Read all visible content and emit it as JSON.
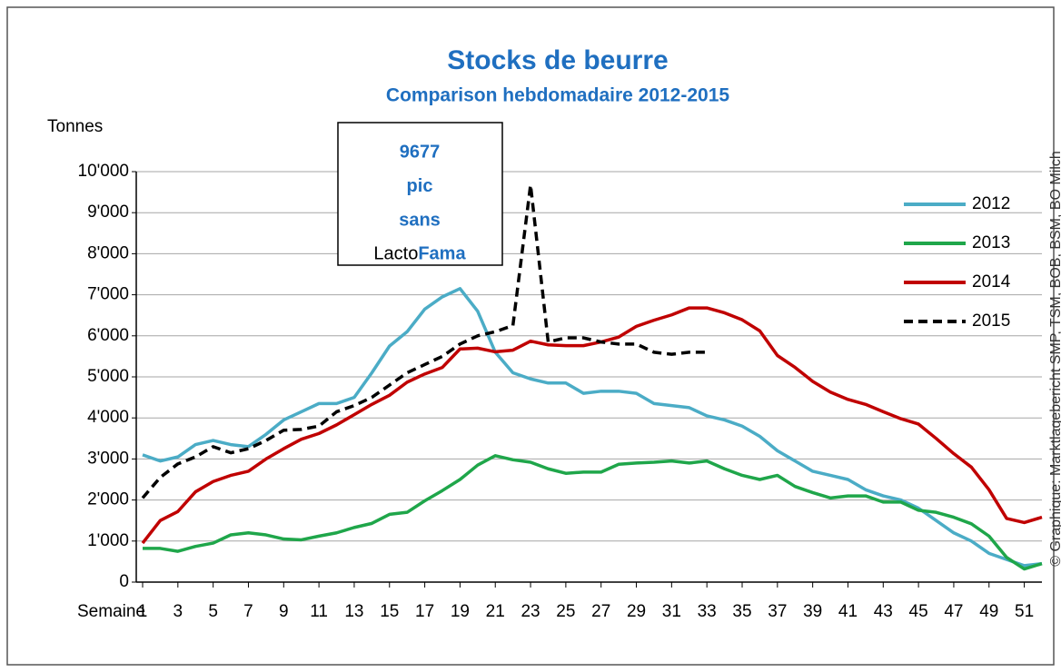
{
  "chart_data": {
    "type": "line",
    "title": "Stocks de beurre",
    "subtitle": "Comparison hebdomadaire 2012-2015",
    "y_label": "Tonnes",
    "x_label": "Semaine",
    "source": "© Graphique: Marktlagebericht SMP, TSM, BOB, BSM, BO Milch",
    "annotation": {
      "lines": [
        "9677",
        "pic",
        "sans"
      ],
      "last_line": [
        "Lacto",
        "Fama"
      ]
    },
    "x": [
      1,
      2,
      3,
      4,
      5,
      6,
      7,
      8,
      9,
      10,
      11,
      12,
      13,
      14,
      15,
      16,
      17,
      18,
      19,
      20,
      21,
      22,
      23,
      24,
      25,
      26,
      27,
      28,
      29,
      30,
      31,
      32,
      33,
      34,
      35,
      36,
      37,
      38,
      39,
      40,
      41,
      42,
      43,
      44,
      45,
      46,
      47,
      48,
      49,
      50,
      51,
      52
    ],
    "xlim": [
      1,
      52
    ],
    "xticks": [
      1,
      3,
      5,
      7,
      9,
      11,
      13,
      15,
      17,
      19,
      21,
      23,
      25,
      27,
      29,
      31,
      33,
      35,
      37,
      39,
      41,
      43,
      45,
      47,
      49,
      51
    ],
    "ylim": [
      0,
      10000
    ],
    "yticks": [
      0,
      {
        "value": 1000,
        "label": "1'000"
      },
      {
        "value": 2000,
        "label": "2'000"
      },
      {
        "value": 3000,
        "label": "3'000"
      },
      {
        "value": 4000,
        "label": "4'000"
      },
      {
        "value": 5000,
        "label": "5'000"
      },
      {
        "value": 6000,
        "label": "6'000"
      },
      {
        "value": 7000,
        "label": "7'000"
      },
      {
        "value": 8000,
        "label": "8'000"
      },
      {
        "value": 9000,
        "label": "9'000"
      },
      {
        "value": 10000,
        "label": "10'000"
      }
    ],
    "grid": true,
    "legend": "upper right",
    "series": [
      {
        "name": "2012",
        "color": "#4bacc6",
        "linestyle": "solid",
        "values": [
          3100,
          2950,
          3050,
          3350,
          3450,
          3350,
          3300,
          3600,
          3950,
          4150,
          4350,
          4350,
          4500,
          5100,
          5750,
          6100,
          6650,
          6950,
          7150,
          6600,
          5600,
          5100,
          4950,
          4850,
          4850,
          4600,
          4650,
          4650,
          4600,
          4350,
          4300,
          4250,
          4050,
          3950,
          3800,
          3550,
          3200,
          2950,
          2700,
          2600,
          2500,
          2250,
          2100,
          2000,
          1800,
          1500,
          1200,
          1000,
          700,
          550,
          400,
          450
        ]
      },
      {
        "name": "2013",
        "color": "#1fa64a",
        "linestyle": "solid",
        "values": [
          820,
          820,
          750,
          870,
          950,
          1150,
          1200,
          1150,
          1050,
          1030,
          1120,
          1200,
          1330,
          1430,
          1650,
          1700,
          1980,
          2230,
          2500,
          2850,
          3080,
          2980,
          2920,
          2760,
          2650,
          2680,
          2680,
          2870,
          2900,
          2920,
          2950,
          2900,
          2950,
          2760,
          2600,
          2500,
          2600,
          2330,
          2180,
          2050,
          2100,
          2100,
          1950,
          1950,
          1750,
          1700,
          1580,
          1420,
          1120,
          600,
          320,
          450
        ]
      },
      {
        "name": "2014",
        "color": "#c00000",
        "linestyle": "solid",
        "values": [
          950,
          1500,
          1720,
          2200,
          2450,
          2600,
          2700,
          3000,
          3250,
          3480,
          3620,
          3830,
          4080,
          4330,
          4550,
          4870,
          5070,
          5230,
          5680,
          5700,
          5610,
          5650,
          5870,
          5780,
          5760,
          5760,
          5850,
          5970,
          6230,
          6380,
          6510,
          6680,
          6680,
          6560,
          6390,
          6120,
          5520,
          5230,
          4890,
          4630,
          4450,
          4330,
          4150,
          3980,
          3850,
          3500,
          3130,
          2800,
          2250,
          1550,
          1450,
          1580
        ]
      },
      {
        "name": "2015",
        "color": "#000000",
        "linestyle": "dashed",
        "values": [
          2050,
          2550,
          2880,
          3050,
          3300,
          3150,
          3250,
          3450,
          3700,
          3720,
          3800,
          4150,
          4300,
          4500,
          4800,
          5100,
          5300,
          5500,
          5800,
          6000,
          6100,
          6250,
          9677,
          5850,
          5950,
          5950,
          5850,
          5800,
          5800,
          5600,
          5550,
          5600,
          5600,
          null,
          null,
          null,
          null,
          null,
          null,
          null,
          null,
          null,
          null,
          null,
          null,
          null,
          null,
          null,
          null,
          null,
          null,
          null
        ]
      }
    ]
  }
}
